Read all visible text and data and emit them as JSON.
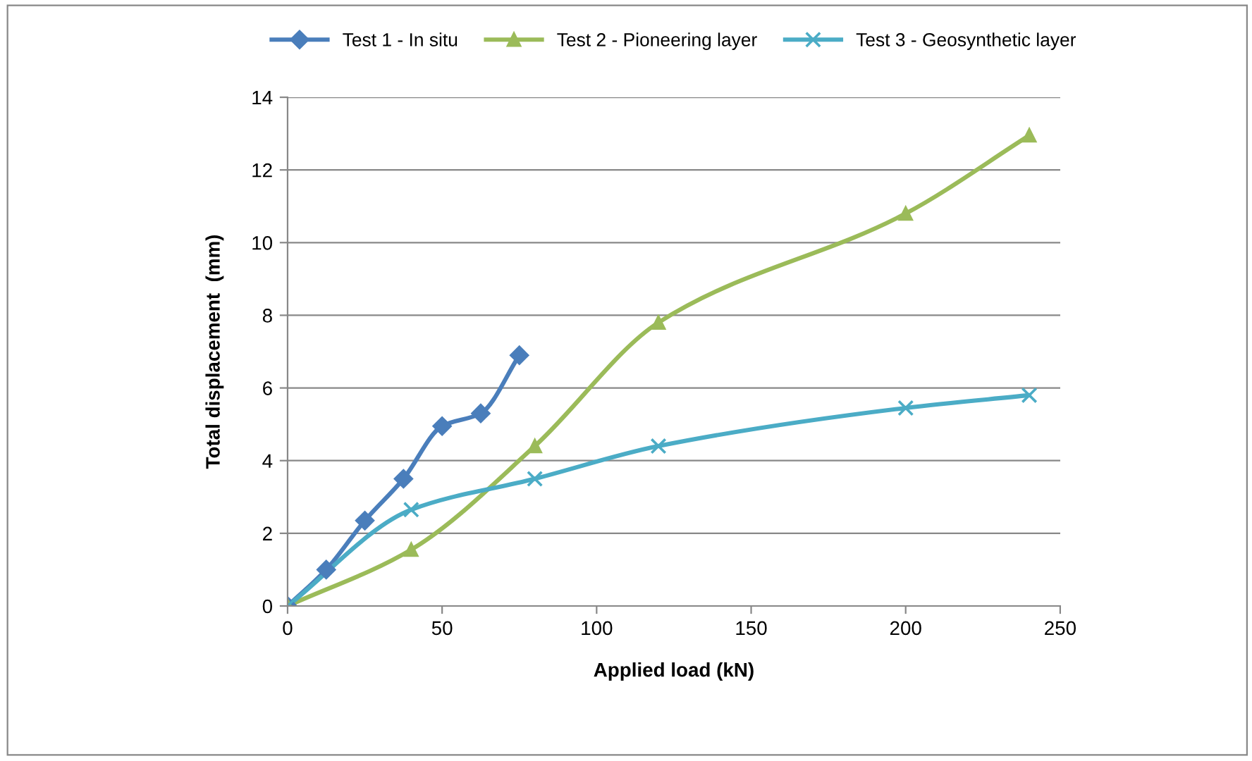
{
  "chart_data": {
    "type": "line",
    "xlabel": "Applied load (kN)",
    "ylabel": "Total displacement  (mm)",
    "xlim": [
      0,
      250
    ],
    "xticks": [
      0,
      50,
      100,
      150,
      200,
      250
    ],
    "ylim": [
      0,
      14
    ],
    "yticks": [
      0,
      2,
      4,
      6,
      8,
      10,
      12,
      14
    ],
    "grid": "y",
    "legend": "top",
    "series": [
      {
        "name": "Test 1 - In situ",
        "color": "#4a7ebb",
        "marker": "diamond",
        "x": [
          0,
          12.5,
          25,
          37.5,
          50,
          62.5,
          75
        ],
        "values": [
          0,
          1.0,
          2.35,
          3.5,
          4.95,
          5.3,
          6.9
        ]
      },
      {
        "name": "Test 2 - Pioneering layer",
        "color": "#9bbb59",
        "marker": "triangle",
        "x": [
          0,
          40,
          80,
          120,
          200,
          240
        ],
        "values": [
          0,
          1.55,
          4.4,
          7.8,
          10.8,
          12.95
        ]
      },
      {
        "name": "Test 3 - Geosynthetic layer",
        "color": "#4bacc6",
        "marker": "cross",
        "x": [
          0,
          40,
          80,
          120,
          200,
          240
        ],
        "values": [
          0,
          2.65,
          3.5,
          4.4,
          5.45,
          5.8
        ]
      }
    ]
  }
}
